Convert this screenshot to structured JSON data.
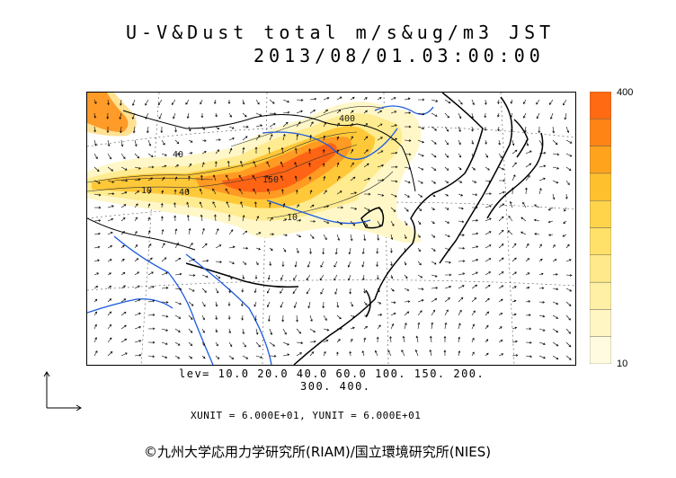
{
  "title": {
    "line1": "U-V&Dust total m/s&ug/m3 JST",
    "line2": "2013/08/01.03:00:00"
  },
  "colorbar": {
    "max_label": "400",
    "min_label": "10",
    "colors": [
      "#fffbe0",
      "#fff6c4",
      "#fff0a6",
      "#ffe98a",
      "#ffe16a",
      "#ffd44a",
      "#ffc02e",
      "#ffa31c",
      "#ff8416",
      "#ff6a12"
    ]
  },
  "contour_levels": {
    "line1": "lev= 10.0 20.0 40.0 60.0 100. 150. 200.",
    "line2": "300. 400."
  },
  "contour_labels": [
    "400",
    "40",
    "40",
    "10",
    "150",
    "10"
  ],
  "units_text": "XUNIT = 6.000E+01, YUNIT = 6.000E+01",
  "copyright": "©九州大学応用力学研究所(RIAM)/国立環境研究所(NIES)",
  "colors": {
    "coastline": "#000000",
    "rivers": "#1a5adf",
    "wind_arrows": "#000000",
    "dust_high": "#ff5a1a",
    "dust_low": "#fff7c8"
  }
}
